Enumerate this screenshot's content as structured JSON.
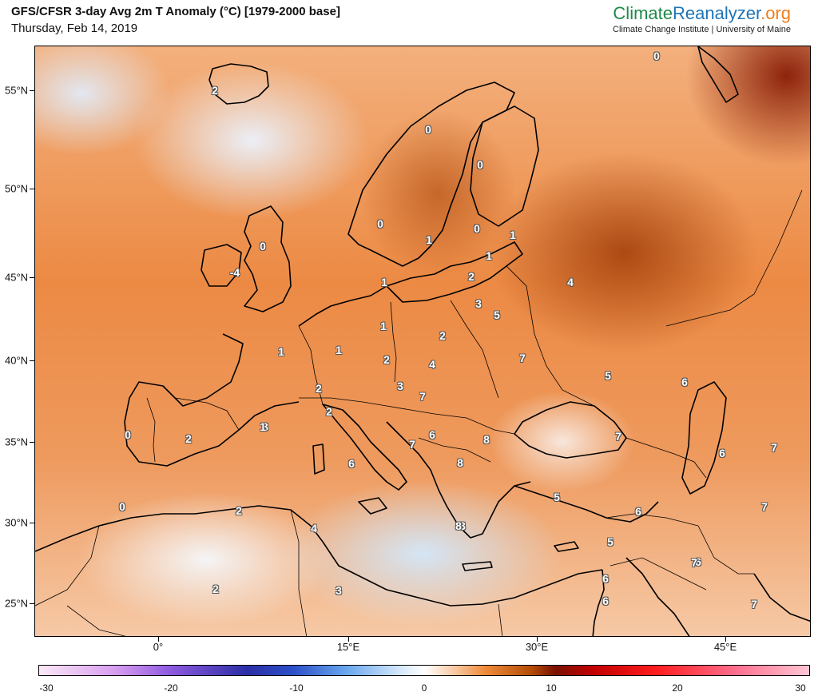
{
  "header": {
    "title": "GFS/CFSR 3-day Avg 2m T Anomaly (°C) [1979-2000 base]",
    "date": "Thursday, Feb 14, 2019",
    "brand_part1": "Climate",
    "brand_part2": "Reanalyzer",
    "brand_part3": ".org",
    "brand_sub": "Climate Change Institute | University of Maine"
  },
  "map": {
    "lat_labels": [
      "55°N",
      "50°N",
      "45°N",
      "40°N",
      "35°N",
      "30°N",
      "25°N"
    ],
    "lon_labels": [
      "0°",
      "15°E",
      "30°E",
      "45°E"
    ],
    "contour_labels": [
      "2",
      "0",
      "0",
      "0",
      "0",
      "1",
      "0",
      "1",
      "-4",
      "1",
      "2",
      "1",
      "0",
      "3",
      "5",
      "4",
      "1",
      "2",
      "1",
      "1",
      "2",
      "4",
      "3",
      "7",
      "7",
      "5",
      "6",
      "2",
      "2",
      "3",
      "1",
      "7",
      "7",
      "6",
      "0",
      "2",
      "0",
      "6",
      "8",
      "7",
      "6",
      "8",
      "5",
      "6",
      "7",
      "2",
      "4",
      "5",
      "3",
      "8",
      "6",
      "7",
      "2",
      "3",
      "6",
      "6",
      "7"
    ],
    "colors": {
      "coastline": "#000000",
      "land_warm": "#ec8a44",
      "hot": "#8e2a00",
      "cold": "#d6e9fb"
    }
  },
  "colorbar": {
    "ticks": [
      "-30",
      "-20",
      "-10",
      "0",
      "10",
      "20",
      "30"
    ]
  }
}
